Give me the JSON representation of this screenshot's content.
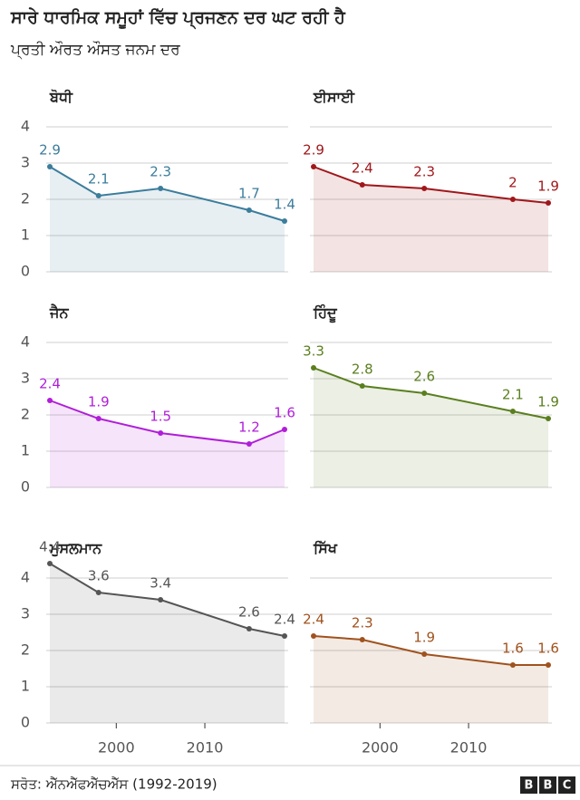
{
  "title": "ਸਾਰੇ ਧਾਰਮਿਕ ਸਮੂਹਾਂ ਵਿੱਚ ਪ੍ਰਜਣਨ ਦਰ ਘਟ ਰਹੀ ਹੈ",
  "subtitle": "ਪ੍ਰਤੀ ਔਰਤ ਔਸਤ ਜਨਮ ਦਰ",
  "source": "ਸਰੋਤ: ਐੱਨਐੱਫਐੱਚਐੱਸ (1992-2019)",
  "logo": [
    "B",
    "B",
    "C"
  ],
  "chart_data": [
    {
      "type": "line",
      "title": "ਬੋਧੀ",
      "x": [
        1992.5,
        1998,
        2005,
        2015,
        2019
      ],
      "values": [
        2.9,
        2.1,
        2.3,
        1.7,
        1.4
      ],
      "color": "#3b7d9c",
      "xlim": [
        1992.5,
        2019
      ],
      "ylim": [
        0,
        4.5
      ],
      "yticks": [
        0,
        1,
        2,
        3,
        4
      ]
    },
    {
      "type": "line",
      "title": "ਈਸਾਈ",
      "x": [
        1992.5,
        1998,
        2005,
        2015,
        2019
      ],
      "values": [
        2.9,
        2.4,
        2.3,
        2,
        1.9
      ],
      "color": "#a0171b",
      "xlim": [
        1992.5,
        2019
      ],
      "ylim": [
        0,
        4.5
      ],
      "yticks": [
        0,
        1,
        2,
        3,
        4
      ]
    },
    {
      "type": "line",
      "title": "ਜੈਨ",
      "x": [
        1992.5,
        1998,
        2005,
        2015,
        2019
      ],
      "values": [
        2.4,
        1.9,
        1.5,
        1.2,
        1.6
      ],
      "color": "#b01ed8",
      "xlim": [
        1992.5,
        2019
      ],
      "ylim": [
        0,
        4.5
      ],
      "yticks": [
        0,
        1,
        2,
        3,
        4
      ]
    },
    {
      "type": "line",
      "title": "ਹਿੰਦੂ",
      "x": [
        1992.5,
        1998,
        2005,
        2015,
        2019
      ],
      "values": [
        3.3,
        2.8,
        2.6,
        2.1,
        1.9
      ],
      "color": "#5a7f1e",
      "xlim": [
        1992.5,
        2019
      ],
      "ylim": [
        0,
        4.5
      ],
      "yticks": [
        0,
        1,
        2,
        3,
        4
      ]
    },
    {
      "type": "line",
      "title": "ਮੁਸਲਮਾਨ",
      "x": [
        1992.5,
        1998,
        2005,
        2015,
        2019
      ],
      "values": [
        4.4,
        3.6,
        3.4,
        2.6,
        2.4
      ],
      "color": "#555555",
      "xlim": [
        1992.5,
        2019
      ],
      "ylim": [
        0,
        4.5
      ],
      "yticks": [
        0,
        1,
        2,
        3,
        4
      ],
      "xticks": [
        2000,
        2010
      ]
    },
    {
      "type": "line",
      "title": "ਸਿੱਖ",
      "x": [
        1992.5,
        1998,
        2005,
        2015,
        2019
      ],
      "values": [
        2.4,
        2.3,
        1.9,
        1.6,
        1.6
      ],
      "color": "#a0521d",
      "xlim": [
        1992.5,
        2019
      ],
      "ylim": [
        0,
        4.5
      ],
      "yticks": [
        0,
        1,
        2,
        3,
        4
      ],
      "xticks": [
        2000,
        2010
      ]
    }
  ]
}
